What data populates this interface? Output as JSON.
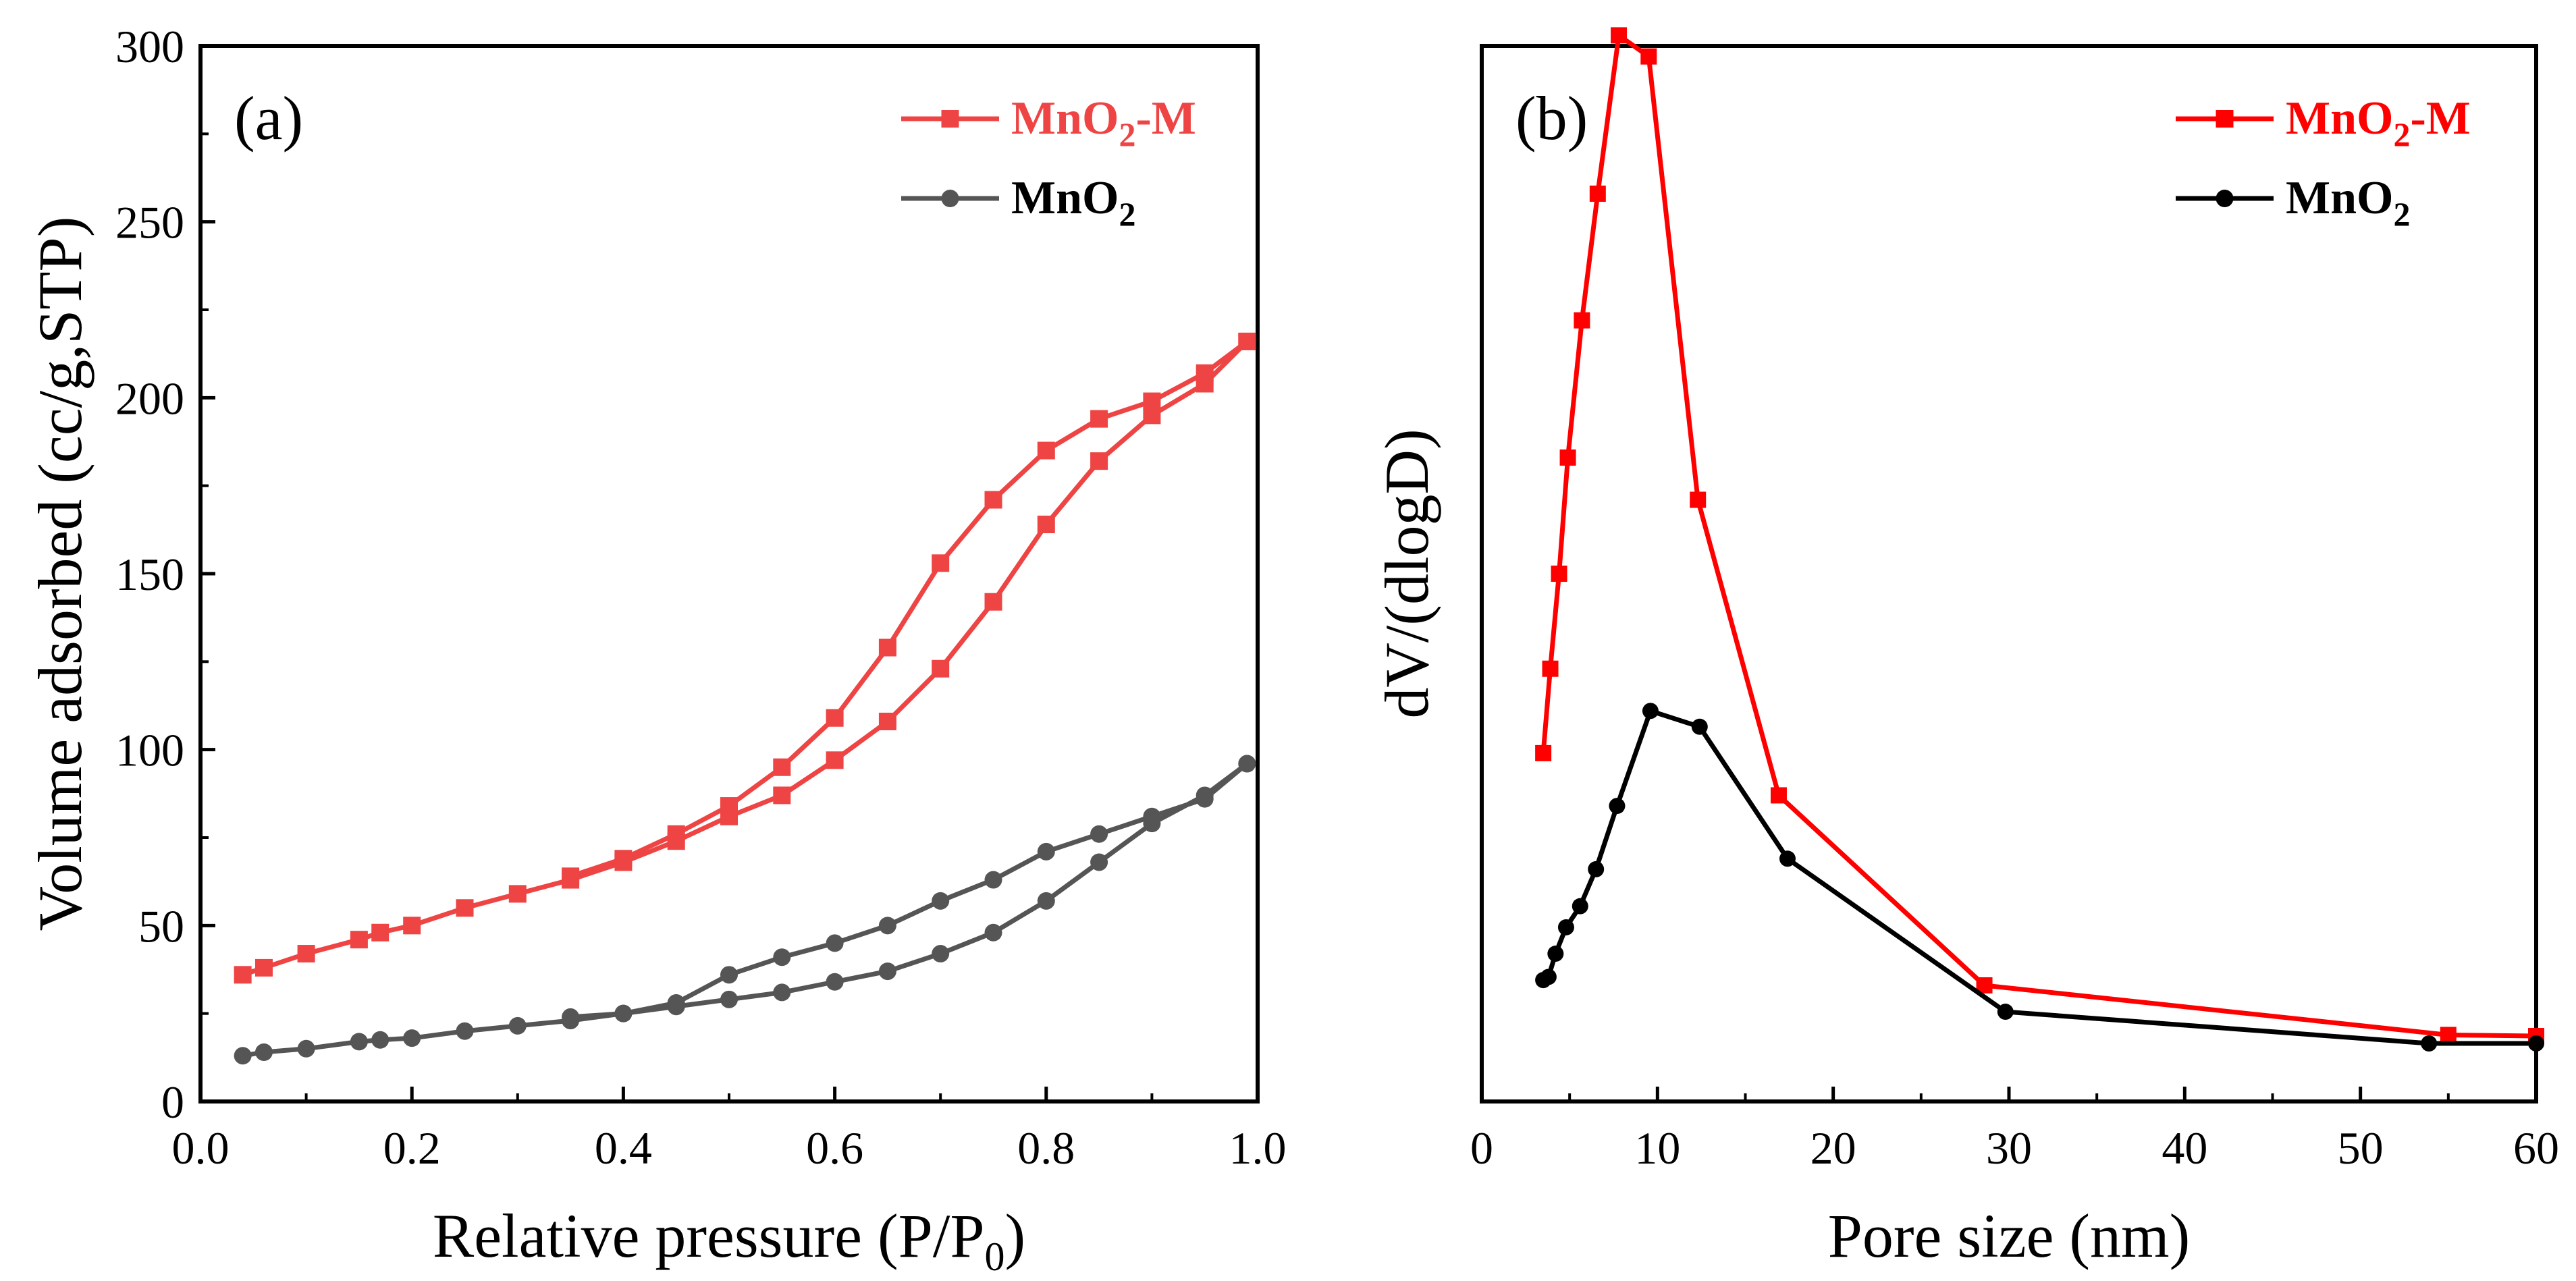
{
  "colors": {
    "mno2m_a": "#ee4444",
    "mno2_a": "#555555",
    "mno2m_b": "#ff0000",
    "mno2_b": "#000000",
    "axis": "#000000"
  },
  "chart_data": [
    {
      "type": "line",
      "panel_tag": "(a)",
      "xlabel": "Relative pressure (P/P",
      "xlabel_sub": "0",
      "xlabel_close": ")",
      "ylabel": "Volume adsorbed (cc/g,STP)",
      "xlim": [
        0.0,
        1.0
      ],
      "ylim": [
        0,
        300
      ],
      "xticks": [
        "0.0",
        "0.2",
        "0.4",
        "0.6",
        "0.8",
        "1.0"
      ],
      "yticks": [
        "0",
        "50",
        "100",
        "150",
        "200",
        "250",
        "300"
      ],
      "legend_position": "top-right",
      "series": [
        {
          "name": "MnO",
          "name_sub": "2",
          "name_suffix": "-M",
          "color_key": "mno2m_a",
          "marker": "square",
          "x": [
            0.04,
            0.06,
            0.1,
            0.15,
            0.17,
            0.2,
            0.25,
            0.3,
            0.35,
            0.4,
            0.45,
            0.5,
            0.55,
            0.6,
            0.65,
            0.7,
            0.75,
            0.8,
            0.85,
            0.9,
            0.95,
            0.99
          ],
          "y": [
            36,
            38,
            42,
            46,
            48,
            50,
            55,
            59,
            63,
            68,
            74,
            81,
            87,
            97,
            108,
            123,
            142,
            164,
            182,
            195,
            204,
            216
          ],
          "desorption_x": [
            0.99,
            0.95,
            0.9,
            0.85,
            0.8,
            0.75,
            0.7,
            0.65,
            0.6,
            0.55,
            0.5,
            0.45,
            0.4,
            0.35
          ],
          "desorption_y": [
            216,
            207,
            199,
            194,
            185,
            171,
            153,
            129,
            109,
            95,
            84,
            76,
            69,
            64
          ]
        },
        {
          "name": "MnO",
          "name_sub": "2",
          "name_suffix": "",
          "color_key": "mno2_a",
          "marker": "circle",
          "x": [
            0.04,
            0.06,
            0.1,
            0.15,
            0.17,
            0.2,
            0.25,
            0.3,
            0.35,
            0.4,
            0.45,
            0.5,
            0.55,
            0.6,
            0.65,
            0.7,
            0.75,
            0.8,
            0.85,
            0.9,
            0.95,
            0.99
          ],
          "y": [
            13,
            14,
            15,
            17,
            17.5,
            18,
            20,
            21.5,
            23,
            25,
            27,
            29,
            31,
            34,
            37,
            42,
            48,
            57,
            68,
            79,
            87,
            96
          ],
          "desorption_x": [
            0.99,
            0.95,
            0.9,
            0.85,
            0.8,
            0.75,
            0.7,
            0.65,
            0.6,
            0.55,
            0.5,
            0.45,
            0.4,
            0.35
          ],
          "desorption_y": [
            96,
            86,
            81,
            76,
            71,
            63,
            57,
            50,
            45,
            41,
            36,
            28,
            25,
            24
          ]
        }
      ]
    },
    {
      "type": "line",
      "panel_tag": "(b)",
      "xlabel": "Pore size (nm)",
      "ylabel": "dV/(dlogD)",
      "xlim": [
        0,
        60
      ],
      "ylim": [
        0,
        100
      ],
      "xticks": [
        "0",
        "10",
        "20",
        "30",
        "40",
        "50",
        "60"
      ],
      "legend_position": "top-right",
      "series": [
        {
          "name": "MnO",
          "name_sub": "2",
          "name_suffix": "-M",
          "color_key": "mno2m_b",
          "marker": "square",
          "x": [
            3.5,
            3.9,
            4.4,
            4.9,
            5.7,
            6.6,
            7.8,
            9.5,
            12.3,
            16.9,
            28.6,
            55.0,
            60.0
          ],
          "y": [
            33,
            41,
            50,
            61,
            74,
            86,
            101,
            99,
            57,
            29,
            11,
            6.3,
            6.2
          ]
        },
        {
          "name": "MnO",
          "name_sub": "2",
          "name_suffix": "",
          "color_key": "mno2_b",
          "marker": "circle",
          "x": [
            3.5,
            3.8,
            4.2,
            4.8,
            5.6,
            6.5,
            7.7,
            9.6,
            12.4,
            17.4,
            29.8,
            53.9,
            60.0
          ],
          "y": [
            11.5,
            11.8,
            14,
            16.5,
            18.5,
            22,
            28,
            37,
            35.5,
            23,
            8.5,
            5.5,
            5.5
          ]
        }
      ]
    }
  ]
}
